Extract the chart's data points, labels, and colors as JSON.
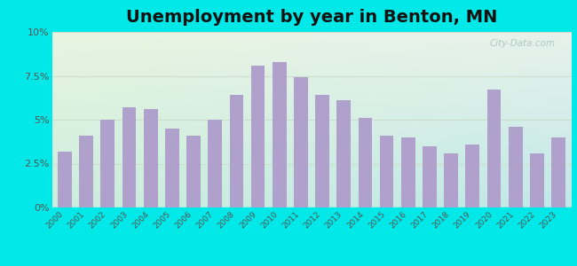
{
  "title": "Unemployment by year in Benton, MN",
  "years": [
    2000,
    2001,
    2002,
    2003,
    2004,
    2005,
    2006,
    2007,
    2008,
    2009,
    2010,
    2011,
    2012,
    2013,
    2014,
    2015,
    2016,
    2017,
    2018,
    2019,
    2020,
    2021,
    2022,
    2023
  ],
  "values": [
    3.2,
    4.1,
    5.0,
    5.7,
    5.6,
    4.5,
    4.1,
    5.0,
    6.4,
    8.1,
    8.3,
    7.4,
    6.4,
    6.1,
    5.1,
    4.1,
    4.0,
    3.5,
    3.1,
    3.6,
    6.7,
    4.6,
    3.1,
    4.0
  ],
  "bar_color": "#b0a0cc",
  "background_outer": "#00e8e8",
  "ylim": [
    0,
    10
  ],
  "yticks": [
    0,
    2.5,
    5.0,
    7.5,
    10.0
  ],
  "ytick_labels": [
    "0%",
    "2.5%",
    "5%",
    "7.5%",
    "10%"
  ],
  "title_fontsize": 14,
  "watermark": "City-Data.com",
  "grad_colors": [
    "#e8f5e0",
    "#cceedd",
    "#c8eae8"
  ],
  "grid_color": "#ccddcc"
}
